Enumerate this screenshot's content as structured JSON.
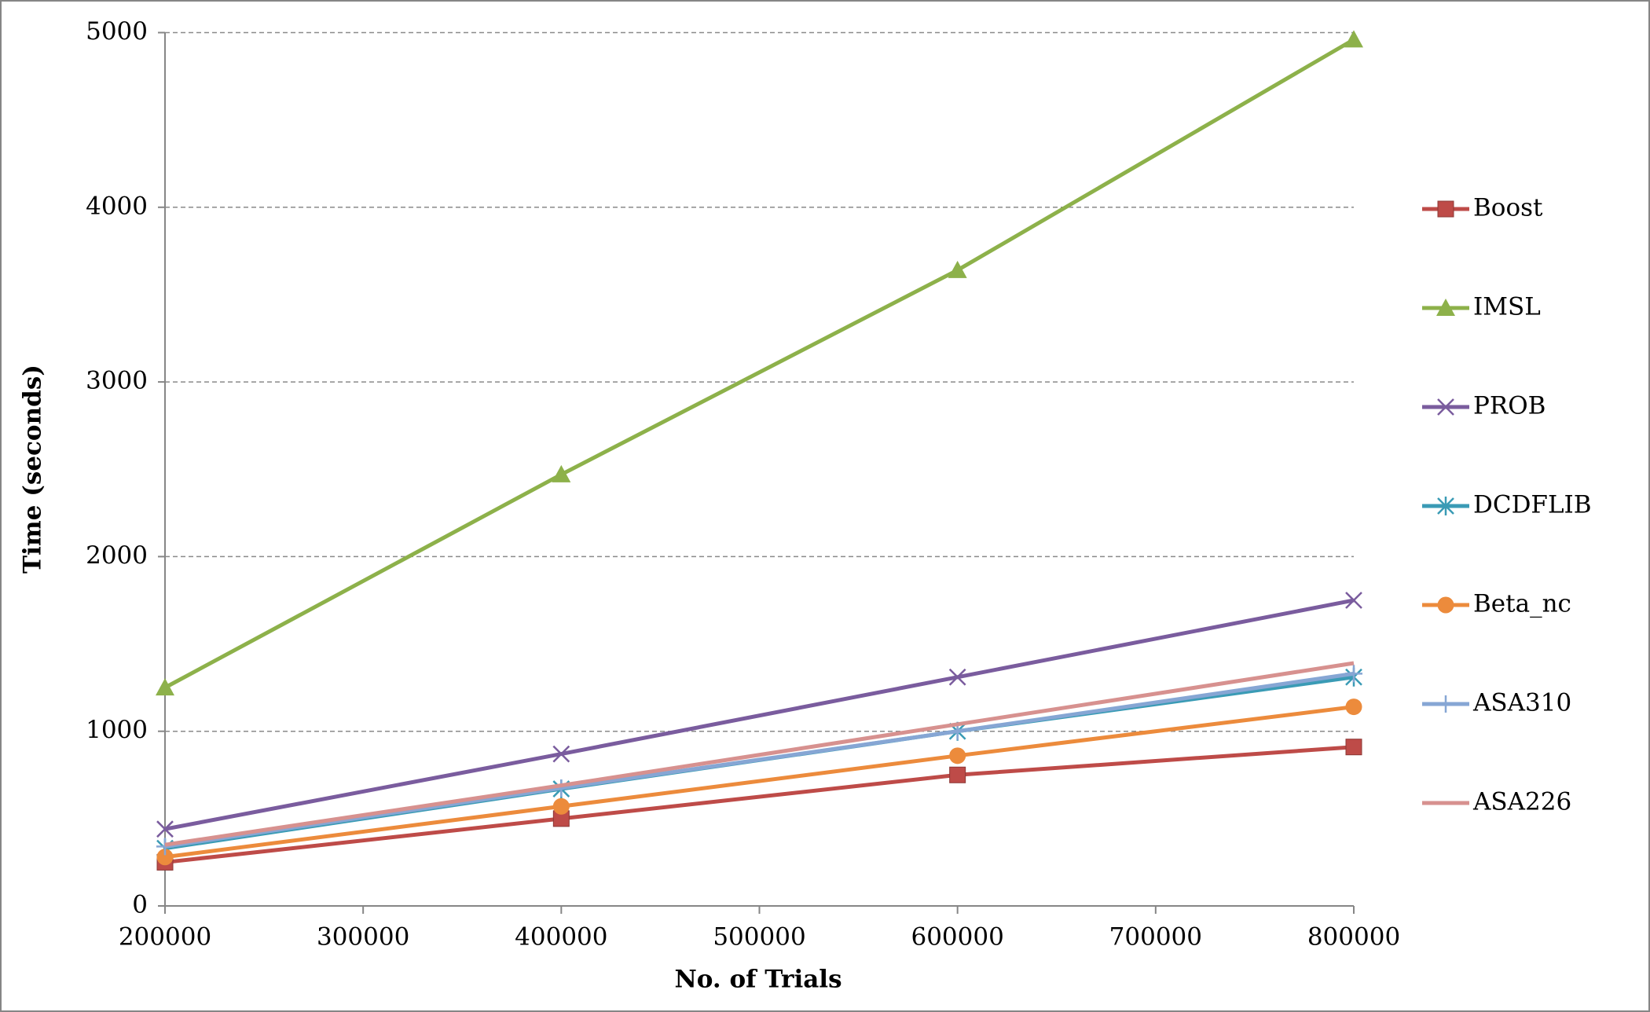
{
  "chart_data": {
    "type": "line",
    "x_label": "No. of Trials",
    "y_label": "Time (seconds)",
    "x": [
      200000,
      400000,
      600000,
      800000
    ],
    "xlim": [
      200000,
      800000
    ],
    "xticks": [
      200000,
      300000,
      400000,
      500000,
      600000,
      700000,
      800000
    ],
    "ylim": [
      0,
      5000
    ],
    "yticks": [
      0,
      1000,
      2000,
      3000,
      4000,
      5000
    ],
    "grid": true,
    "legend": "right",
    "series": [
      {
        "name": "Boost",
        "color": "#be4b48",
        "marker": "square",
        "values": [
          250,
          500,
          750,
          910
        ]
      },
      {
        "name": "IMSL",
        "color": "#8db14a",
        "marker": "triangle",
        "values": [
          1250,
          2470,
          3640,
          4960
        ]
      },
      {
        "name": "PROB",
        "color": "#7a5c9e",
        "marker": "x",
        "values": [
          440,
          870,
          1310,
          1750
        ]
      },
      {
        "name": "DCDFLIB",
        "color": "#3a9bb5",
        "marker": "asterisk",
        "values": [
          330,
          670,
          1000,
          1310
        ]
      },
      {
        "name": "Beta_nc",
        "color": "#ec8b3c",
        "marker": "circle",
        "values": [
          280,
          570,
          860,
          1140
        ]
      },
      {
        "name": "ASA310",
        "color": "#86a6d4",
        "marker": "plus",
        "values": [
          340,
          675,
          1000,
          1330
        ]
      },
      {
        "name": "ASA226",
        "color": "#d7918f",
        "marker": "none",
        "values": [
          350,
          690,
          1040,
          1390
        ]
      }
    ]
  }
}
